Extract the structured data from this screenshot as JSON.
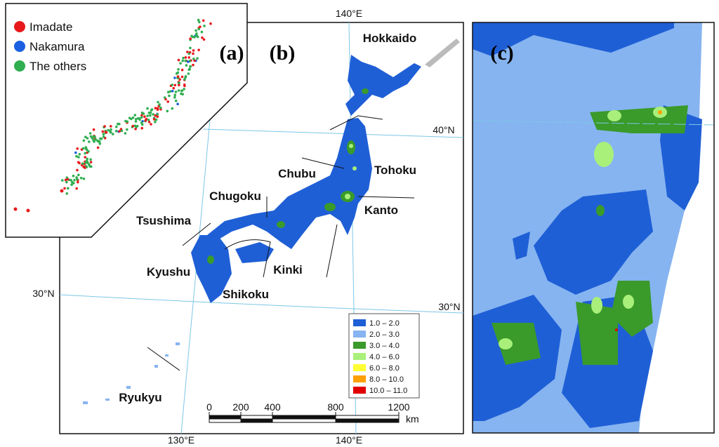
{
  "panel_labels": [
    "(a)",
    "(b)",
    "(c)"
  ],
  "station_legend": [
    {
      "label": "Imadate",
      "color": "#e8191b"
    },
    {
      "label": "Nakamura",
      "color": "#1a5fe0"
    },
    {
      "label": "The others",
      "color": "#2fae4f"
    }
  ],
  "region_labels": [
    "Hokkaido",
    "Tohoku",
    "Chubu",
    "Chugoku",
    "Kanto",
    "Tsushima",
    "Kyushu",
    "Kinki",
    "Shikoku",
    "Ryukyu"
  ],
  "graticule_labels": [
    "140°E",
    "40°N",
    "30°N",
    "30°N",
    "130°E",
    "140°E"
  ],
  "value_legend": [
    {
      "label": "1.0 – 2.0",
      "color": "#1f5fd6"
    },
    {
      "label": "2.0 – 3.0",
      "color": "#86b4f0"
    },
    {
      "label": "3.0 – 4.0",
      "color": "#3a9a2a"
    },
    {
      "label": "4.0 – 6.0",
      "color": "#a8f07a"
    },
    {
      "label": "6.0 – 8.0",
      "color": "#ffff33"
    },
    {
      "label": "8.0 – 10.0",
      "color": "#ffa000"
    },
    {
      "label": "10.0 – 11.0",
      "color": "#e00000"
    }
  ],
  "scale_bar": {
    "ticks": [
      0,
      200,
      400,
      800,
      1200
    ],
    "unit": "km"
  }
}
